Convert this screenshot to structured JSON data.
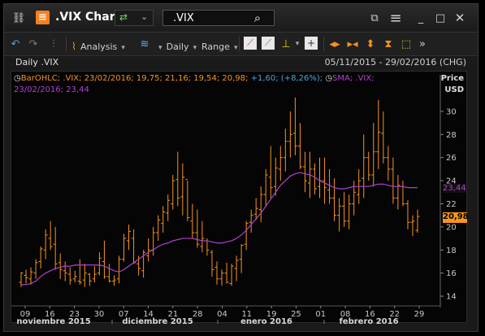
{
  "window": {
    "title": ".VIX Chart",
    "ric": ".VIX"
  },
  "toolbar": {
    "analysis": "Analysis",
    "interval": "Daily",
    "range": "Range"
  },
  "chart": {
    "header_left": "Daily .VIX",
    "date_range": "05/11/2015 - 29/02/2016 (CHG)",
    "price_label": "Price",
    "currency": "USD",
    "legend_ohlc": "BarOHLC; .VIX; 23/02/2016; 19,75; 21,16; 19,54; 20,98; ",
    "legend_change": "+1,60; (+8,26%);",
    "legend_sma": "SMA; .VIX;",
    "legend_sma_value": "23/02/2016; 23,44",
    "last_price_tag": "20,98",
    "sma_tag": "23,44"
  },
  "colors": {
    "ohlc": "#f7931e",
    "sma": "#b040d0",
    "background": "#050505",
    "text": "#c8c8c8"
  },
  "chart_data": {
    "type": "line",
    "y_ticks": [
      "14",
      "16",
      "18",
      "20",
      "22",
      "24",
      "26",
      "28",
      "30"
    ],
    "ylim": [
      13.3,
      32.6
    ],
    "x_ticks": [
      "09",
      "16",
      "23",
      "30",
      "07",
      "14",
      "21",
      "28",
      "04",
      "11",
      "19",
      "25",
      "01",
      "08",
      "16",
      "22",
      "29"
    ],
    "month_labels": [
      "noviembre 2015",
      "diciembre 2015",
      "enero 2016",
      "febrero 2016"
    ],
    "series": [
      {
        "name": "BarOHLC",
        "type": "ohlc",
        "values": [
          [
            16.1,
            14.8,
            15.2,
            16.0
          ],
          [
            16.3,
            15.1,
            15.8,
            15.6
          ],
          [
            16.5,
            15.0,
            15.5,
            16.1
          ],
          [
            17.2,
            15.5,
            16.0,
            16.9
          ],
          [
            18.3,
            16.4,
            17.0,
            18.1
          ],
          [
            19.8,
            17.2,
            18.0,
            19.3
          ],
          [
            20.5,
            18.0,
            19.0,
            18.3
          ],
          [
            20.0,
            16.3,
            18.5,
            16.8
          ],
          [
            17.7,
            15.5,
            16.9,
            16.3
          ],
          [
            17.0,
            15.3,
            16.2,
            16.0
          ],
          [
            16.5,
            15.0,
            15.9,
            15.4
          ],
          [
            16.2,
            15.2,
            15.5,
            15.7
          ],
          [
            17.2,
            15.0,
            15.3,
            15.2
          ],
          [
            16.8,
            14.8,
            15.4,
            16.0
          ],
          [
            16.0,
            14.9,
            15.9,
            15.3
          ],
          [
            16.6,
            15.2,
            15.5,
            15.9
          ],
          [
            17.8,
            15.8,
            16.0,
            17.3
          ],
          [
            18.8,
            15.5,
            17.0,
            15.7
          ],
          [
            16.8,
            15.2,
            15.7,
            15.3
          ],
          [
            15.8,
            14.9,
            15.3,
            15.4
          ],
          [
            17.5,
            15.1,
            15.5,
            17.2
          ],
          [
            19.4,
            17.0,
            17.2,
            19.0
          ],
          [
            20.2,
            18.0,
            18.8,
            19.6
          ],
          [
            19.8,
            16.8,
            19.0,
            16.9
          ],
          [
            17.5,
            15.8,
            16.8,
            16.4
          ],
          [
            18.0,
            15.6,
            16.2,
            17.8
          ],
          [
            19.0,
            17.0,
            17.5,
            18.0
          ],
          [
            20.0,
            17.5,
            18.0,
            19.5
          ],
          [
            21.0,
            18.8,
            19.5,
            20.6
          ],
          [
            21.8,
            19.5,
            20.3,
            21.3
          ],
          [
            22.8,
            20.5,
            21.2,
            22.3
          ],
          [
            24.5,
            21.5,
            22.0,
            24.0
          ],
          [
            26.5,
            21.8,
            24.1,
            22.5
          ],
          [
            25.5,
            21.0,
            22.6,
            24.3
          ],
          [
            24.0,
            20.5,
            24.1,
            20.8
          ],
          [
            22.0,
            19.0,
            20.5,
            19.5
          ],
          [
            21.5,
            18.2,
            19.5,
            18.5
          ],
          [
            20.5,
            17.8,
            18.3,
            19.0
          ],
          [
            19.0,
            17.5,
            18.8,
            18.0
          ],
          [
            18.0,
            15.7,
            17.8,
            16.3
          ],
          [
            17.0,
            15.0,
            16.5,
            15.5
          ],
          [
            16.3,
            14.9,
            15.5,
            16.0
          ],
          [
            16.9,
            15.1,
            16.0,
            15.2
          ],
          [
            16.8,
            14.9,
            15.1,
            16.6
          ],
          [
            17.5,
            15.3,
            16.4,
            17.1
          ],
          [
            18.5,
            16.0,
            17.2,
            18.4
          ],
          [
            20.5,
            18.0,
            18.5,
            20.3
          ],
          [
            21.5,
            19.5,
            20.4,
            21.0
          ],
          [
            22.5,
            20.6,
            21.1,
            21.6
          ],
          [
            23.5,
            20.4,
            21.5,
            22.8
          ],
          [
            25.0,
            21.8,
            22.8,
            24.5
          ],
          [
            27.0,
            22.5,
            24.3,
            23.4
          ],
          [
            26.0,
            22.7,
            23.5,
            25.1
          ],
          [
            27.0,
            24.0,
            25.0,
            26.0
          ],
          [
            28.5,
            24.8,
            26.0,
            27.4
          ],
          [
            30.0,
            26.0,
            27.4,
            28.0
          ],
          [
            31.2,
            26.2,
            28.1,
            27.0
          ],
          [
            29.0,
            25.0,
            27.0,
            25.2
          ],
          [
            26.5,
            23.0,
            25.2,
            24.0
          ],
          [
            26.5,
            22.5,
            23.8,
            25.0
          ],
          [
            25.5,
            22.8,
            25.0,
            23.3
          ],
          [
            26.0,
            22.5,
            23.5,
            24.0
          ],
          [
            26.0,
            22.0,
            24.0,
            23.4
          ],
          [
            25.0,
            22.0,
            23.2,
            22.5
          ],
          [
            24.2,
            20.5,
            22.5,
            21.0
          ],
          [
            22.5,
            19.6,
            21.0,
            21.8
          ],
          [
            23.0,
            20.0,
            21.8,
            20.5
          ],
          [
            22.8,
            19.8,
            20.5,
            22.0
          ],
          [
            24.0,
            21.0,
            22.0,
            23.0
          ],
          [
            25.0,
            22.0,
            22.8,
            24.0
          ],
          [
            28.0,
            22.5,
            24.2,
            26.0
          ],
          [
            26.5,
            24.0,
            26.0,
            24.5
          ],
          [
            29.0,
            23.5,
            24.5,
            26.5
          ],
          [
            31.0,
            25.0,
            26.5,
            28.2
          ],
          [
            30.0,
            25.5,
            28.1,
            26.0
          ],
          [
            27.0,
            24.0,
            26.0,
            25.0
          ],
          [
            26.0,
            22.0,
            25.0,
            22.5
          ],
          [
            24.5,
            21.5,
            22.5,
            23.6
          ],
          [
            24.0,
            21.8,
            23.5,
            22.0
          ],
          [
            22.3,
            19.8,
            22.0,
            20.4
          ],
          [
            21.0,
            19.2,
            20.4,
            20.5
          ],
          [
            21.5,
            19.5,
            19.7,
            20.9
          ]
        ]
      },
      {
        "name": "SMA",
        "type": "line",
        "values": [
          15.0,
          15.0,
          15.1,
          15.3,
          15.7,
          16.0,
          16.2,
          16.4,
          16.5,
          16.6,
          16.6,
          16.7,
          16.7,
          16.7,
          16.7,
          16.7,
          16.7,
          16.6,
          16.4,
          16.2,
          16.1,
          16.3,
          16.6,
          16.9,
          17.2,
          17.5,
          17.8,
          18.0,
          18.3,
          18.5,
          18.6,
          18.8,
          18.9,
          19.0,
          19.0,
          19.0,
          18.9,
          18.8,
          18.8,
          18.7,
          18.6,
          18.6,
          18.7,
          18.8,
          19.0,
          19.3,
          19.7,
          20.2,
          20.7,
          21.2,
          21.8,
          22.4,
          23.0,
          23.6,
          24.0,
          24.4,
          24.6,
          24.7,
          24.6,
          24.5,
          24.3,
          24.0,
          23.8,
          23.6,
          23.4,
          23.3,
          23.3,
          23.4,
          23.5,
          23.5,
          23.5,
          23.5,
          23.6,
          23.7,
          23.7,
          23.6,
          23.5,
          23.5,
          23.5,
          23.4,
          23.4,
          23.4
        ]
      }
    ]
  }
}
